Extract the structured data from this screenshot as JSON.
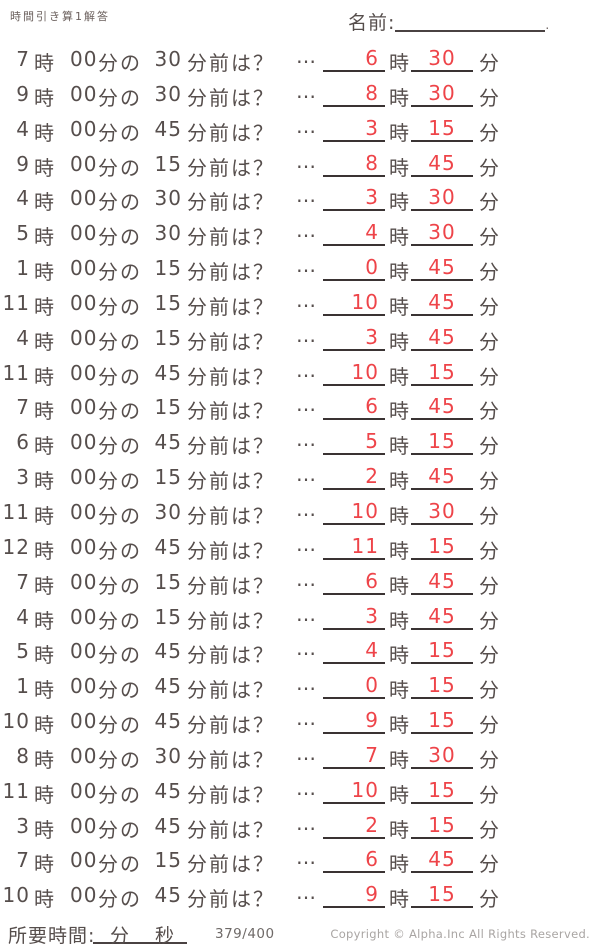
{
  "header": {
    "title": "時間引き算1解答",
    "name_label": "名前:",
    "name_line_end": "."
  },
  "labels": {
    "hour_unit": "時",
    "minutes_particle": "分の",
    "before_question": "分前は？",
    "ellipsis": "…",
    "minute_unit": "分"
  },
  "problems": [
    {
      "hour": "7",
      "minutes": "00",
      "before": "30",
      "answer_hour": "6",
      "answer_minutes": "30"
    },
    {
      "hour": "9",
      "minutes": "00",
      "before": "30",
      "answer_hour": "8",
      "answer_minutes": "30"
    },
    {
      "hour": "4",
      "minutes": "00",
      "before": "45",
      "answer_hour": "3",
      "answer_minutes": "15"
    },
    {
      "hour": "9",
      "minutes": "00",
      "before": "15",
      "answer_hour": "8",
      "answer_minutes": "45"
    },
    {
      "hour": "4",
      "minutes": "00",
      "before": "30",
      "answer_hour": "3",
      "answer_minutes": "30"
    },
    {
      "hour": "5",
      "minutes": "00",
      "before": "30",
      "answer_hour": "4",
      "answer_minutes": "30"
    },
    {
      "hour": "1",
      "minutes": "00",
      "before": "15",
      "answer_hour": "0",
      "answer_minutes": "45"
    },
    {
      "hour": "11",
      "minutes": "00",
      "before": "15",
      "answer_hour": "10",
      "answer_minutes": "45"
    },
    {
      "hour": "4",
      "minutes": "00",
      "before": "15",
      "answer_hour": "3",
      "answer_minutes": "45"
    },
    {
      "hour": "11",
      "minutes": "00",
      "before": "45",
      "answer_hour": "10",
      "answer_minutes": "15"
    },
    {
      "hour": "7",
      "minutes": "00",
      "before": "15",
      "answer_hour": "6",
      "answer_minutes": "45"
    },
    {
      "hour": "6",
      "minutes": "00",
      "before": "45",
      "answer_hour": "5",
      "answer_minutes": "15"
    },
    {
      "hour": "3",
      "minutes": "00",
      "before": "15",
      "answer_hour": "2",
      "answer_minutes": "45"
    },
    {
      "hour": "11",
      "minutes": "00",
      "before": "30",
      "answer_hour": "10",
      "answer_minutes": "30"
    },
    {
      "hour": "12",
      "minutes": "00",
      "before": "45",
      "answer_hour": "11",
      "answer_minutes": "15"
    },
    {
      "hour": "7",
      "minutes": "00",
      "before": "15",
      "answer_hour": "6",
      "answer_minutes": "45"
    },
    {
      "hour": "4",
      "minutes": "00",
      "before": "15",
      "answer_hour": "3",
      "answer_minutes": "45"
    },
    {
      "hour": "5",
      "minutes": "00",
      "before": "45",
      "answer_hour": "4",
      "answer_minutes": "15"
    },
    {
      "hour": "1",
      "minutes": "00",
      "before": "45",
      "answer_hour": "0",
      "answer_minutes": "15"
    },
    {
      "hour": "10",
      "minutes": "00",
      "before": "45",
      "answer_hour": "9",
      "answer_minutes": "15"
    },
    {
      "hour": "8",
      "minutes": "00",
      "before": "30",
      "answer_hour": "7",
      "answer_minutes": "30"
    },
    {
      "hour": "11",
      "minutes": "00",
      "before": "45",
      "answer_hour": "10",
      "answer_minutes": "15"
    },
    {
      "hour": "3",
      "minutes": "00",
      "before": "45",
      "answer_hour": "2",
      "answer_minutes": "15"
    },
    {
      "hour": "7",
      "minutes": "00",
      "before": "15",
      "answer_hour": "6",
      "answer_minutes": "45"
    },
    {
      "hour": "10",
      "minutes": "00",
      "before": "45",
      "answer_hour": "9",
      "answer_minutes": "15"
    }
  ],
  "footer": {
    "time_label": "所要時間:",
    "minutes_label": "分",
    "seconds_label": "秒",
    "score": "379/400",
    "copyright": "Copyright ©  Alpha.Inc All Rights Reserved."
  },
  "colors": {
    "text": "#564e4c",
    "answer_red": "#ee4449",
    "blank_line": "#3a3333",
    "write_line": "#4a4242",
    "score_gray": "#6f6a68",
    "copyright_gray": "#a9a5a3",
    "background": "#ffffff"
  }
}
